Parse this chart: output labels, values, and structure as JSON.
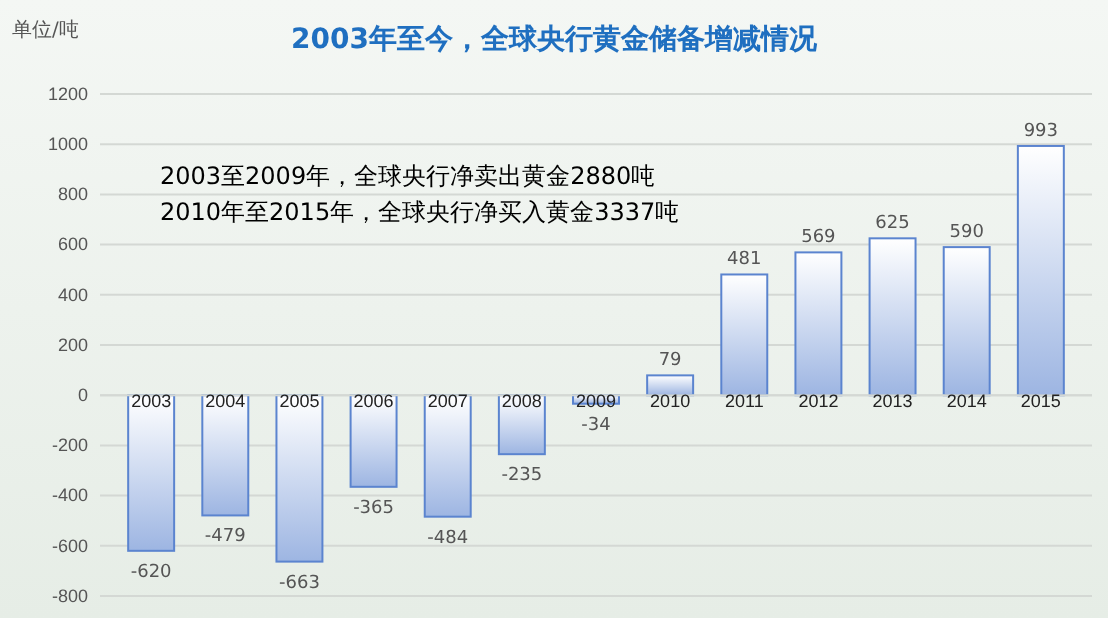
{
  "chart_data": {
    "type": "bar",
    "title": "2003年至今，全球央行黄金储备增减情况",
    "ylabel": "单位/吨",
    "categories": [
      "2003",
      "2004",
      "2005",
      "2006",
      "2007",
      "2008",
      "2009",
      "2010",
      "2011",
      "2012",
      "2013",
      "2014",
      "2015"
    ],
    "values": [
      -620,
      -479,
      -663,
      -365,
      -484,
      -235,
      -34,
      79,
      481,
      569,
      625,
      590,
      993
    ],
    "color": "#5b84cf",
    "ylim": [
      -800,
      1200
    ],
    "yticks": [
      -800,
      -600,
      -400,
      -200,
      0,
      200,
      400,
      600,
      800,
      1000,
      1200
    ],
    "grid": "y",
    "data_labels": true,
    "annotations": [
      "2003至2009年，全球央行净卖出黄金2880吨",
      "2010年至2015年，全球央行净买入黄金3337吨"
    ]
  }
}
